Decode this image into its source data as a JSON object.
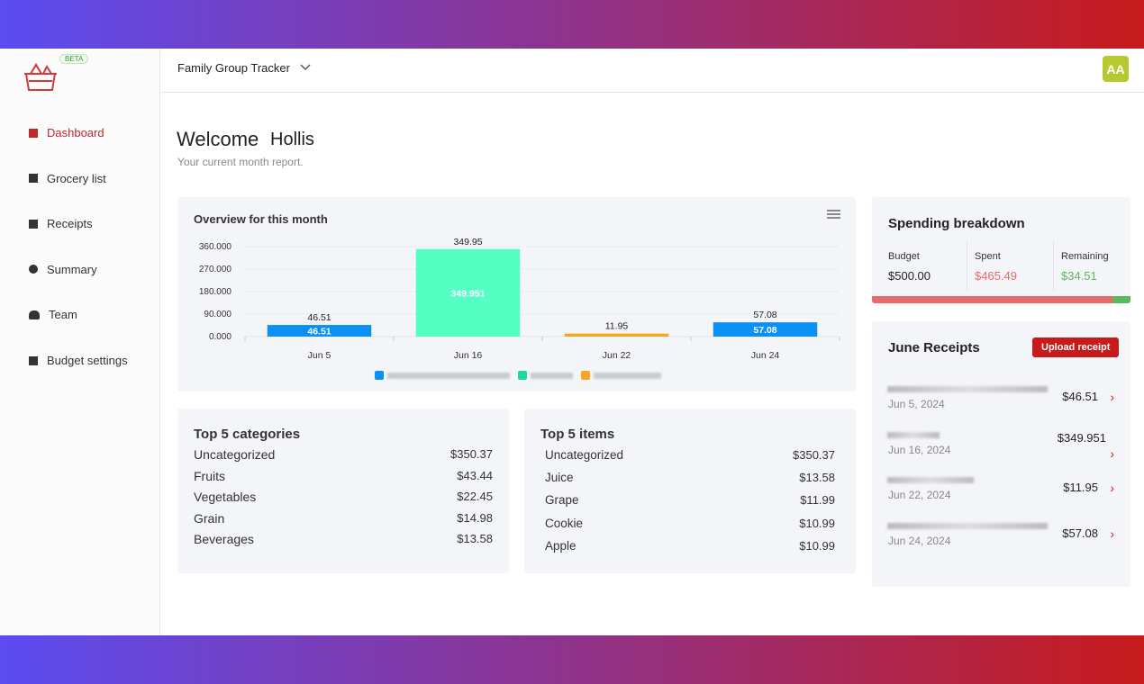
{
  "sidebar": {
    "badge": "BETA",
    "nav": [
      "Dashboard",
      "Grocery list",
      "Receipts",
      "Summary",
      "Team",
      "Budget settings"
    ]
  },
  "header": {
    "group": "Family Group Tracker",
    "avatar": "AA"
  },
  "welcome": {
    "title": "Welcome",
    "name": "Hollis",
    "subtitle": "Your current month report."
  },
  "chart_data": {
    "type": "bar",
    "title": "Overview for this month",
    "categories": [
      "Jun 5",
      "Jun 16",
      "Jun 22",
      "Jun 24"
    ],
    "values": [
      46.51,
      349.951,
      11.95,
      57.08
    ],
    "value_labels": [
      "46.51",
      "349.95",
      "11.95",
      "57.08"
    ],
    "colors": [
      "#0a8ff5",
      "#55ffc4",
      "#f5a623",
      "#0a8ff5"
    ],
    "legend_colors": [
      "#0a8ff5",
      "#1fd99b",
      "#f5a623"
    ],
    "ylim": [
      0,
      360
    ],
    "yticks": [
      {
        "value": 0,
        "label": "0.000"
      },
      {
        "value": 90,
        "label": "90.000"
      },
      {
        "value": 180,
        "label": "180.000"
      },
      {
        "value": 270,
        "label": "270.000"
      },
      {
        "value": 360,
        "label": "360.000"
      }
    ],
    "grid": true
  },
  "spending": {
    "title": "Spending breakdown",
    "items": [
      {
        "label": "Budget",
        "value": "$500.00"
      },
      {
        "label": "Spent",
        "value": "$465.49"
      },
      {
        "label": "Remaining",
        "value": "$34.51"
      }
    ]
  },
  "receipts": {
    "title": "June Receipts",
    "button": "Upload receipt",
    "items": [
      {
        "date": "Jun 5, 2024",
        "amount": "$46.51"
      },
      {
        "date": "Jun 16, 2024",
        "amount": "$349.951"
      },
      {
        "date": "Jun 22, 2024",
        "amount": "$11.95"
      },
      {
        "date": "Jun 24, 2024",
        "amount": "$57.08"
      }
    ]
  },
  "categories": {
    "title": "Top 5 categories",
    "rows": [
      [
        "Uncategorized",
        "$350.37"
      ],
      [
        "Fruits",
        "$43.44"
      ],
      [
        "Vegetables",
        "$22.45"
      ],
      [
        "Grain",
        "$14.98"
      ],
      [
        "Beverages",
        "$13.58"
      ]
    ]
  },
  "items": {
    "title": "Top 5 items",
    "rows": [
      [
        "Uncategorized",
        "$350.37"
      ],
      [
        "Juice",
        "$13.58"
      ],
      [
        "Grape",
        "$11.99"
      ],
      [
        "Cookie",
        "$10.99"
      ],
      [
        "Apple",
        "$10.99"
      ]
    ]
  }
}
